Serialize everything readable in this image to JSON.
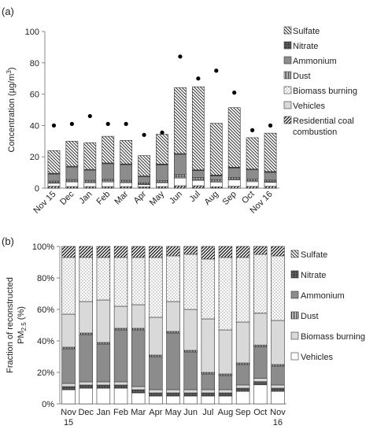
{
  "chart_data": [
    {
      "panel_label": "(a)",
      "type": "bar",
      "stacked": true,
      "ylabel_main": "Concentration (µg/m",
      "ylabel_sup": "3",
      "ylabel_end": ")",
      "ylim": [
        0,
        100
      ],
      "yticks": [
        0,
        20,
        40,
        60,
        80,
        100
      ],
      "categories": [
        "Nov 15",
        "Dec",
        "Jan",
        "Feb",
        "Mar",
        "Apr",
        "May",
        "Jun",
        "Jul",
        "Aug",
        "Sep",
        "Oct",
        "Nov 16"
      ],
      "series": [
        {
          "name": "Residential coal combustion",
          "fill": "hatch-diag",
          "values": [
            1.2,
            1.0,
            1.0,
            1.0,
            1.0,
            0.8,
            1.0,
            1.5,
            1.5,
            0.9,
            1.2,
            1.1,
            1.2
          ]
        },
        {
          "name": "Vehicles",
          "fill": "white",
          "values": [
            2,
            3,
            2.5,
            3,
            2.5,
            1.5,
            2.5,
            5,
            3.5,
            3,
            4,
            3,
            2.5
          ]
        },
        {
          "name": "Biomass burning",
          "fill": "light-gray",
          "values": [
            0.3,
            0.5,
            0.5,
            0.6,
            0.5,
            0.3,
            0.4,
            0.6,
            0.5,
            0.5,
            0.5,
            0.6,
            0.4
          ]
        },
        {
          "name": "Dust",
          "fill": "vlines",
          "values": [
            1,
            1,
            1,
            1,
            1,
            0.8,
            1,
            1.5,
            1.2,
            1,
            1.2,
            1,
            1
          ]
        },
        {
          "name": "Ammonium",
          "fill": "dark-gray",
          "values": [
            4.5,
            8,
            6.5,
            10,
            10,
            4,
            10,
            13,
            4.5,
            2.5,
            6,
            6,
            5
          ]
        },
        {
          "name": "Nitrate",
          "fill": "cross-dots",
          "values": [
            0.5,
            0.5,
            0.5,
            0.5,
            0.5,
            0.4,
            0.5,
            0.5,
            0.5,
            0.5,
            0.5,
            0.5,
            0.5
          ]
        },
        {
          "name": "Sulfate",
          "fill": "hatch-diag2",
          "values": [
            14.5,
            16,
            17,
            17,
            15,
            13,
            19,
            42,
            53,
            33,
            38,
            20,
            24.5
          ]
        }
      ],
      "series_note": "",
      "points": [
        40,
        41,
        46,
        41,
        41,
        34,
        35.5,
        84,
        70,
        75,
        61,
        37,
        40
      ],
      "legend": [
        {
          "label": "Sulfate",
          "fill": "hatch-diag2"
        },
        {
          "label": "Nitrate",
          "fill": "cross-dots"
        },
        {
          "label": "Ammonium",
          "fill": "dark-gray"
        },
        {
          "label": "Dust",
          "fill": "vlines"
        },
        {
          "label": "Biomass burning",
          "fill": "dots"
        },
        {
          "label": "Vehicles",
          "fill": "light-gray"
        },
        {
          "label": "Residential coal",
          "label2": "combustion",
          "fill": "hatch-diag"
        }
      ]
    },
    {
      "panel_label": "(b)",
      "type": "bar",
      "stacked": true,
      "normalized": true,
      "ylabel_line1": "Fraction of reconstructed",
      "ylabel_line2_main": "PM",
      "ylabel_line2_sub": "2.5",
      "ylabel_line2_end": " (%)",
      "ylim": [
        0,
        100
      ],
      "ytick_labels": [
        "0%",
        "20%",
        "40%",
        "60%",
        "80%",
        "100%"
      ],
      "categories_line1": [
        "Nov",
        "Dec",
        "Jan",
        "Feb",
        "Mar",
        "Apr",
        "May",
        "Jun",
        "Jul",
        "Aug",
        "Sep",
        "Oct",
        "Nov"
      ],
      "categories_line2": [
        "15",
        "",
        "",
        "",
        "",
        "",
        "",
        "",
        "",
        "",
        "",
        "",
        "16"
      ],
      "segments": [
        {
          "fill": "white",
          "values": [
            9,
            10,
            10,
            10,
            7,
            5,
            5,
            5,
            5,
            5,
            8,
            12,
            8
          ]
        },
        {
          "fill": "cross-dots",
          "values": [
            2,
            2,
            2,
            2,
            2,
            2,
            2,
            2,
            2,
            2,
            2,
            2,
            2
          ]
        },
        {
          "fill": "light-gray",
          "values": [
            2,
            2,
            2,
            2,
            2,
            2,
            2,
            2,
            2,
            2,
            2,
            2,
            2
          ]
        },
        {
          "fill": "dark-gray",
          "values": [
            22,
            30,
            24,
            33,
            36,
            21,
            36,
            24,
            10,
            9,
            13,
            20,
            12
          ]
        },
        {
          "fill": "vlines",
          "values": [
            1,
            1,
            1,
            1,
            1,
            1,
            1,
            1,
            1,
            1,
            1,
            1,
            1
          ]
        },
        {
          "fill": "light-gray",
          "values": [
            21,
            20,
            27,
            14,
            15,
            24,
            19,
            26,
            34,
            28,
            26,
            20,
            28
          ]
        },
        {
          "fill": "dots",
          "values": [
            36,
            28,
            27,
            31,
            30,
            38,
            29,
            35,
            38,
            46,
            41,
            37,
            41
          ]
        },
        {
          "fill": "hatch-diag",
          "values": [
            7,
            7,
            7,
            7,
            7,
            7,
            6,
            5,
            8,
            7,
            7,
            5,
            6
          ]
        }
      ],
      "legend": [
        {
          "label": "Sulfate",
          "fill": "hatch-diag2"
        },
        {
          "label": "Nitrate",
          "fill": "cross-dots"
        },
        {
          "label": "Ammonium",
          "fill": "dark-gray"
        },
        {
          "label": "Dust",
          "fill": "vlines"
        },
        {
          "label": "Biomass burning",
          "fill": "light-gray"
        },
        {
          "label": "Vehicles",
          "fill": "white"
        }
      ]
    }
  ]
}
